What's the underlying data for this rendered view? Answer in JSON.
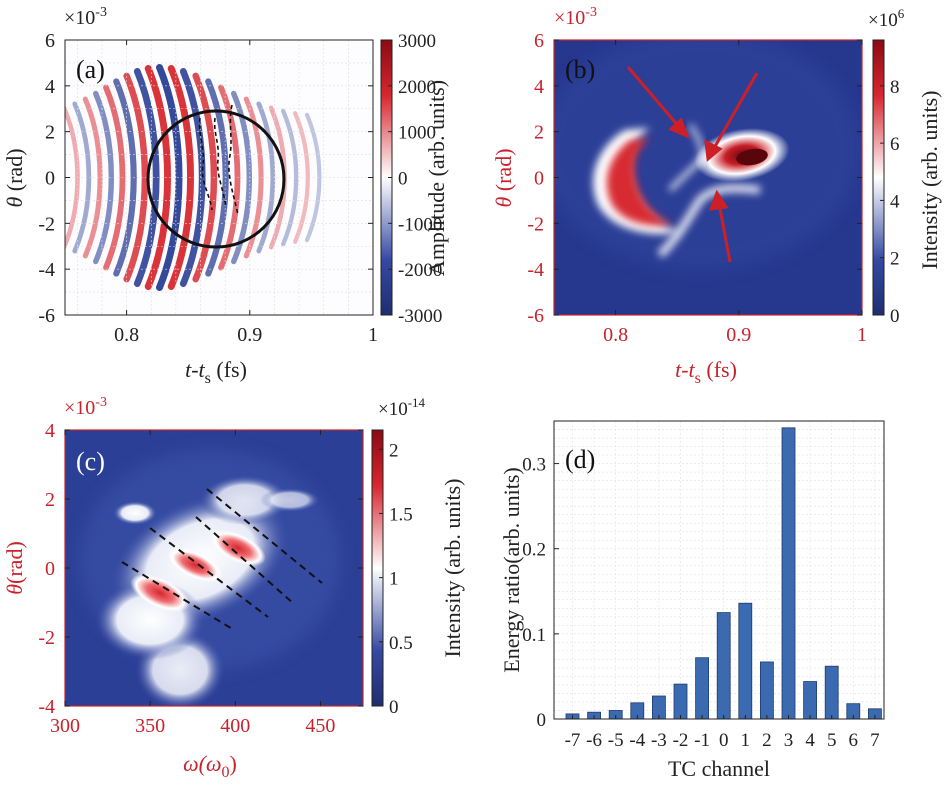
{
  "colors": {
    "dark_red": "#8b0a13",
    "red": "#d7262e",
    "white": "#ffffff",
    "blue": "#2a3f95",
    "dark_blue": "#1f2d70",
    "axis_red": "#c8232c",
    "bar": "#3c6ab0",
    "bar_edge": "#1d3b70",
    "text": "#222222"
  },
  "chart_data": [
    {
      "id": "a",
      "type": "heatmap",
      "panel_label": "(a)",
      "xlabel_main": "t-t",
      "xlabel_sub": "s",
      "xlabel_unit": " (fs)",
      "ylabel_main": "θ",
      "ylabel_unit": " (rad)",
      "y_exponent_base": "×10",
      "y_exponent_power": "-3",
      "xlim": [
        0.75,
        1.0
      ],
      "ylim": [
        -6,
        6
      ],
      "xticks": [
        "0.8",
        "0.9",
        "1"
      ],
      "yticks": [
        "-6",
        "-4",
        "-2",
        "0",
        "2",
        "4",
        "6"
      ],
      "colorbar": {
        "label": "Amplitude (arb. units)",
        "range": [
          -3000,
          3000
        ],
        "ticks": [
          "3000",
          "2000",
          "1000",
          "0",
          "-1000",
          "-2000",
          "-3000"
        ]
      },
      "annotations": [
        "circle",
        "dashed-vortex-lines"
      ]
    },
    {
      "id": "b",
      "type": "heatmap",
      "panel_label": "(b)",
      "xlabel_main": "t-t",
      "xlabel_sub": "s",
      "xlabel_unit": " (fs)",
      "ylabel_main": "θ",
      "ylabel_unit": " (rad)",
      "y_exponent_base": "×10",
      "y_exponent_power": "-3",
      "xlim": [
        0.75,
        1.0
      ],
      "ylim": [
        -6,
        6
      ],
      "xticks": [
        "0.8",
        "0.9",
        "1"
      ],
      "yticks": [
        "-6",
        "-4",
        "-2",
        "0",
        "2",
        "4",
        "6"
      ],
      "colorbar": {
        "label": "Intensity (arb. units)",
        "range": [
          0,
          9.6
        ],
        "exponent_base": "×10",
        "exponent_power": "6",
        "ticks": [
          "8",
          "6",
          "4",
          "2",
          "0"
        ]
      },
      "annotations": [
        "arrows"
      ]
    },
    {
      "id": "c",
      "type": "heatmap",
      "panel_label": "(c)",
      "xlabel_main": "ω(ω",
      "xlabel_sub": "0",
      "xlabel_unit": ")",
      "ylabel_main": "θ",
      "ylabel_unit": "(rad)",
      "y_exponent_base": "×10",
      "y_exponent_power": "-3",
      "xlim": [
        300,
        475
      ],
      "ylim": [
        -4,
        4
      ],
      "xticks": [
        "300",
        "350",
        "400",
        "450"
      ],
      "yticks": [
        "-4",
        "-2",
        "0",
        "2",
        "4"
      ],
      "colorbar": {
        "label": "Intensity (arb. units)",
        "range": [
          0,
          2.15
        ],
        "exponent_base": "×10",
        "exponent_power": "-14",
        "ticks": [
          "2",
          "1.5",
          "1",
          "0.5",
          "0"
        ]
      },
      "annotations": [
        "dashed-lines"
      ]
    },
    {
      "id": "d",
      "type": "bar",
      "panel_label": "(d)",
      "xlabel": "TC channel",
      "ylabel": "Energy ratio(arb. units)",
      "categories": [
        "-7",
        "-6",
        "-5",
        "-4",
        "-3",
        "-2",
        "-1",
        "0",
        "1",
        "2",
        "3",
        "4",
        "5",
        "6",
        "7"
      ],
      "values": [
        0.006,
        0.008,
        0.01,
        0.019,
        0.027,
        0.041,
        0.072,
        0.125,
        0.136,
        0.067,
        0.342,
        0.044,
        0.062,
        0.018,
        0.012
      ],
      "ylim": [
        0,
        0.35
      ],
      "yticks": [
        "0",
        "0.1",
        "0.2",
        "0.3"
      ],
      "grid": true
    }
  ]
}
